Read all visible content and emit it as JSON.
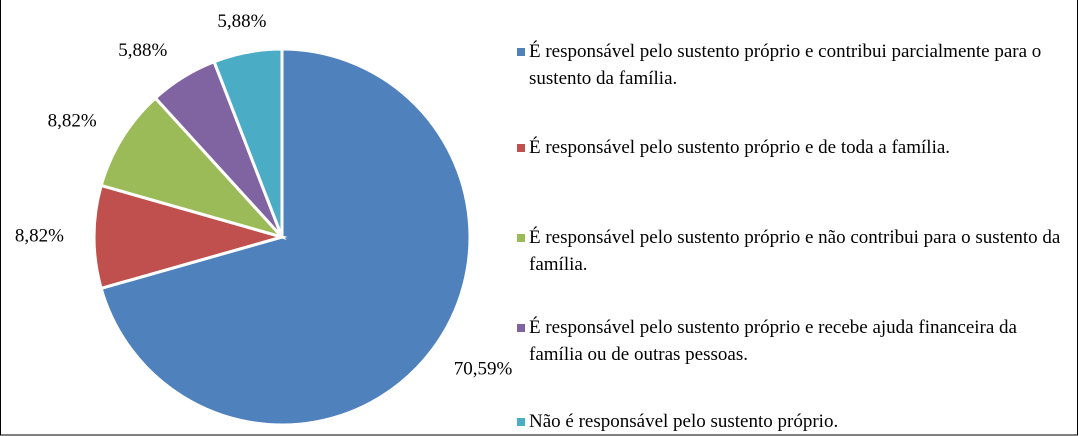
{
  "chart_data": {
    "type": "pie",
    "categories": [
      "É responsável pelo sustento próprio e contribui parcialmente para o sustento da família.",
      "É responsável pelo sustento próprio e de toda a família.",
      "É responsável pelo sustento próprio e não contribui para o sustento da família.",
      "É responsável pelo sustento próprio e recebe ajuda financeira da família ou de outras  pessoas.",
      "Não é responsável pelo sustento próprio."
    ],
    "values": [
      70.59,
      8.82,
      8.82,
      5.88,
      5.88
    ],
    "value_labels": [
      "70,59%",
      "8,82%",
      "8,82%",
      "5,88%",
      "5,88%"
    ],
    "colors": [
      "#4f81bd",
      "#c0504d",
      "#9bbb59",
      "#8064a2",
      "#4bacc6"
    ],
    "legend": "right"
  }
}
